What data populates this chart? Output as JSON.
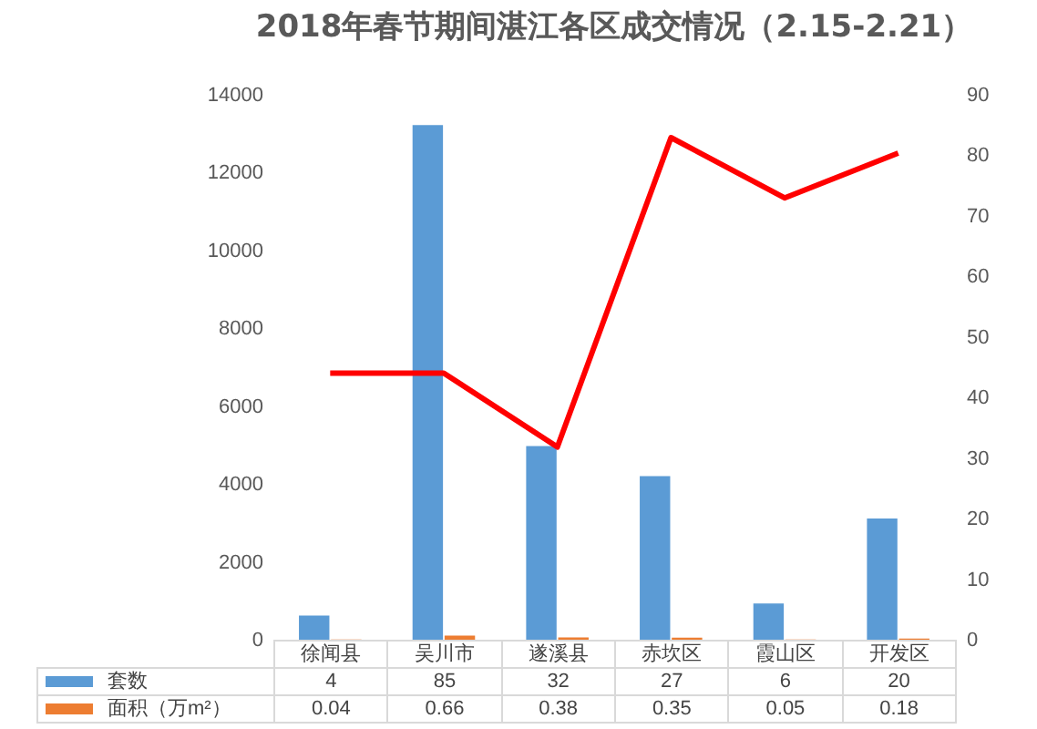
{
  "chart_data": {
    "type": "bar",
    "title": "2018年春节期间湛江各区成交情况（2.15-2.21）",
    "categories": [
      "徐闻县",
      "吴川市",
      "遂溪县",
      "赤坎区",
      "霞山区",
      "开发区"
    ],
    "series": [
      {
        "name": "套数",
        "axis": "y2",
        "color": "#5b9bd5",
        "values": [
          4,
          85,
          32,
          27,
          6,
          20
        ],
        "value_labels": [
          "4",
          "85",
          "32",
          "27",
          "6",
          "20"
        ]
      },
      {
        "name": "面积（万m²）",
        "axis": "y2",
        "color": "#ed7d31",
        "values": [
          0.04,
          0.66,
          0.38,
          0.35,
          0.05,
          0.18
        ],
        "value_labels": [
          "0.04",
          "0.66",
          "0.38",
          "0.35",
          "0.05",
          "0.18"
        ]
      },
      {
        "type": "line",
        "axis": "y",
        "color": "#ff0000",
        "values": [
          6850,
          6850,
          4950,
          12900,
          11350,
          12500
        ]
      }
    ],
    "ylim": [
      0,
      14000
    ],
    "yticks": [
      0,
      2000,
      4000,
      6000,
      8000,
      10000,
      12000,
      14000
    ],
    "y2lim": [
      0,
      90
    ],
    "y2ticks": [
      0,
      10,
      20,
      30,
      40,
      50,
      60,
      70,
      80,
      90
    ],
    "legend": "bottom"
  }
}
